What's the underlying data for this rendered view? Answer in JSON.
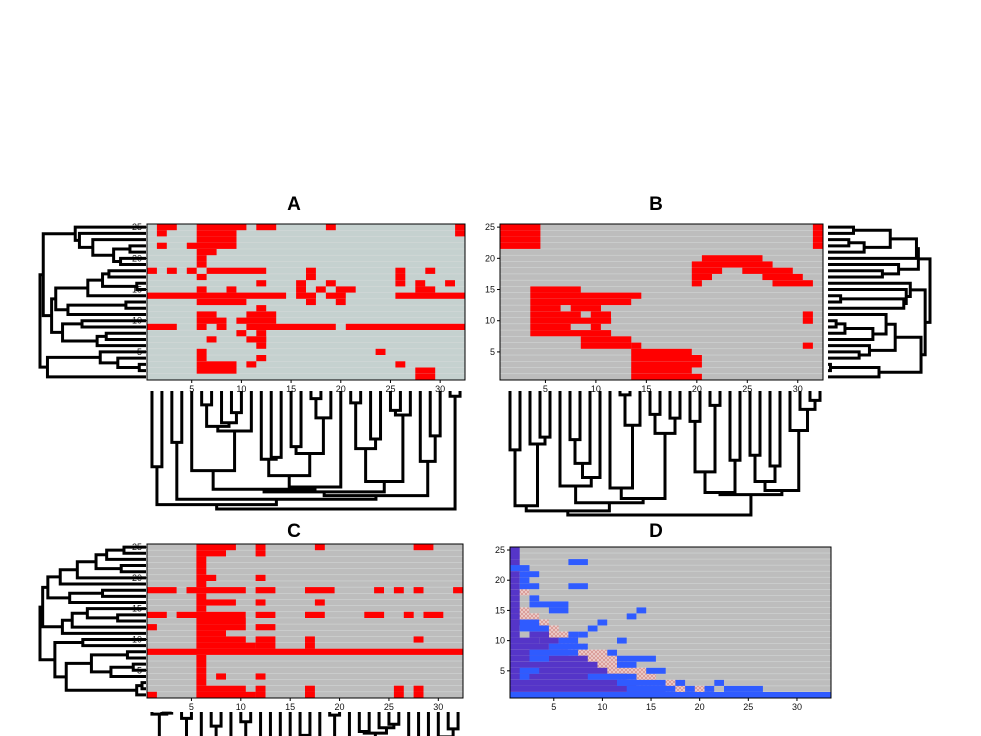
{
  "colors": {
    "background_A": "#c5d1cf",
    "background": "#bdbdbd",
    "cell_red": "#ff0000",
    "cell_blue": "#2f5bff",
    "cell_purple": "#5535c8",
    "cell_hatch": "#d89a96"
  },
  "chart_data": [
    {
      "id": "A",
      "title": "A",
      "type": "heatmap",
      "rows": 25,
      "cols": 32,
      "xticks": [
        5,
        10,
        15,
        20,
        25,
        30
      ],
      "yticks": [
        5,
        10,
        15,
        20,
        25
      ],
      "row_dendrogram": "left",
      "col_dendrogram": "bottom",
      "cells": [
        [
          25,
          2,
          3
        ],
        [
          25,
          6,
          10
        ],
        [
          25,
          12,
          13
        ],
        [
          25,
          19,
          19
        ],
        [
          25,
          32,
          32
        ],
        [
          24,
          2,
          2
        ],
        [
          24,
          6,
          9
        ],
        [
          24,
          32,
          32
        ],
        [
          23,
          6,
          9
        ],
        [
          22,
          2,
          2
        ],
        [
          22,
          5,
          9
        ],
        [
          21,
          6,
          7
        ],
        [
          20,
          6,
          6
        ],
        [
          19,
          6,
          6
        ],
        [
          18,
          1,
          1
        ],
        [
          18,
          3,
          3
        ],
        [
          18,
          5,
          5
        ],
        [
          18,
          7,
          12
        ],
        [
          18,
          17,
          17
        ],
        [
          18,
          26,
          26
        ],
        [
          18,
          29,
          29
        ],
        [
          17,
          6,
          6
        ],
        [
          17,
          17,
          17
        ],
        [
          17,
          26,
          26
        ],
        [
          16,
          12,
          12
        ],
        [
          16,
          16,
          16
        ],
        [
          16,
          19,
          19
        ],
        [
          16,
          26,
          26
        ],
        [
          16,
          28,
          28
        ],
        [
          16,
          31,
          31
        ],
        [
          15,
          6,
          6
        ],
        [
          15,
          9,
          9
        ],
        [
          15,
          16,
          16
        ],
        [
          15,
          18,
          18
        ],
        [
          15,
          20,
          21
        ],
        [
          15,
          28,
          29
        ],
        [
          14,
          1,
          14
        ],
        [
          14,
          16,
          17
        ],
        [
          14,
          19,
          20
        ],
        [
          14,
          26,
          32
        ],
        [
          13,
          6,
          10
        ],
        [
          13,
          17,
          17
        ],
        [
          13,
          20,
          20
        ],
        [
          12,
          12,
          12
        ],
        [
          11,
          6,
          7
        ],
        [
          11,
          11,
          13
        ],
        [
          10,
          6,
          8
        ],
        [
          10,
          10,
          13
        ],
        [
          9,
          1,
          3
        ],
        [
          9,
          6,
          6
        ],
        [
          9,
          8,
          8
        ],
        [
          9,
          11,
          19
        ],
        [
          9,
          21,
          32
        ],
        [
          8,
          10,
          10
        ],
        [
          8,
          12,
          12
        ],
        [
          7,
          7,
          7
        ],
        [
          7,
          11,
          12
        ],
        [
          6,
          12,
          12
        ],
        [
          5,
          6,
          6
        ],
        [
          5,
          24,
          24
        ],
        [
          4,
          6,
          6
        ],
        [
          4,
          12,
          12
        ],
        [
          3,
          6,
          9
        ],
        [
          3,
          11,
          11
        ],
        [
          3,
          26,
          26
        ],
        [
          2,
          6,
          9
        ],
        [
          2,
          28,
          29
        ],
        [
          1,
          28,
          29
        ]
      ]
    },
    {
      "id": "B",
      "title": "B",
      "type": "heatmap",
      "rows": 25,
      "cols": 32,
      "xticks": [
        5,
        10,
        15,
        20,
        25,
        30
      ],
      "yticks": [
        5,
        10,
        15,
        20,
        25
      ],
      "row_dendrogram": "right",
      "col_dendrogram": "bottom",
      "cells": [
        [
          25,
          1,
          4
        ],
        [
          25,
          32,
          32
        ],
        [
          24,
          1,
          4
        ],
        [
          24,
          32,
          32
        ],
        [
          23,
          1,
          4
        ],
        [
          23,
          32,
          32
        ],
        [
          22,
          1,
          4
        ],
        [
          22,
          32,
          32
        ],
        [
          20,
          21,
          26
        ],
        [
          19,
          20,
          27
        ],
        [
          18,
          20,
          22
        ],
        [
          18,
          25,
          29
        ],
        [
          17,
          20,
          21
        ],
        [
          17,
          27,
          30
        ],
        [
          16,
          20,
          20
        ],
        [
          16,
          28,
          31
        ],
        [
          15,
          4,
          8
        ],
        [
          14,
          4,
          14
        ],
        [
          13,
          4,
          13
        ],
        [
          12,
          4,
          6
        ],
        [
          12,
          8,
          10
        ],
        [
          11,
          4,
          8
        ],
        [
          11,
          10,
          11
        ],
        [
          11,
          31,
          31
        ],
        [
          10,
          4,
          11
        ],
        [
          10,
          31,
          31
        ],
        [
          9,
          4,
          7
        ],
        [
          9,
          10,
          10
        ],
        [
          8,
          4,
          11
        ],
        [
          7,
          9,
          13
        ],
        [
          6,
          9,
          13
        ],
        [
          6,
          31,
          31
        ],
        [
          5,
          14,
          19
        ],
        [
          6,
          14,
          14
        ],
        [
          4,
          14,
          20
        ],
        [
          3,
          14,
          20
        ],
        [
          2,
          14,
          19
        ],
        [
          1,
          14,
          20
        ]
      ]
    },
    {
      "id": "C",
      "title": "C",
      "type": "heatmap",
      "rows": 25,
      "cols": 32,
      "xticks": [
        5,
        10,
        15,
        20,
        25,
        30
      ],
      "yticks": [
        5,
        10,
        15,
        20,
        25
      ],
      "row_dendrogram": "left",
      "col_dendrogram": "bottom",
      "cells": [
        [
          25,
          6,
          9
        ],
        [
          25,
          12,
          12
        ],
        [
          25,
          18,
          18
        ],
        [
          25,
          28,
          29
        ],
        [
          24,
          6,
          8
        ],
        [
          24,
          12,
          12
        ],
        [
          23,
          6,
          6
        ],
        [
          22,
          6,
          6
        ],
        [
          21,
          6,
          6
        ],
        [
          20,
          6,
          7
        ],
        [
          20,
          12,
          12
        ],
        [
          19,
          6,
          6
        ],
        [
          18,
          1,
          3
        ],
        [
          18,
          5,
          10
        ],
        [
          18,
          12,
          13
        ],
        [
          18,
          17,
          19
        ],
        [
          18,
          24,
          24
        ],
        [
          18,
          26,
          26
        ],
        [
          18,
          28,
          28
        ],
        [
          18,
          32,
          32
        ],
        [
          17,
          6,
          6
        ],
        [
          16,
          6,
          9
        ],
        [
          16,
          12,
          12
        ],
        [
          16,
          18,
          18
        ],
        [
          15,
          6,
          6
        ],
        [
          14,
          1,
          2
        ],
        [
          14,
          4,
          10
        ],
        [
          14,
          12,
          13
        ],
        [
          14,
          17,
          18
        ],
        [
          14,
          23,
          24
        ],
        [
          14,
          27,
          27
        ],
        [
          14,
          29,
          30
        ],
        [
          13,
          6,
          10
        ],
        [
          12,
          1,
          1
        ],
        [
          12,
          6,
          10
        ],
        [
          12,
          12,
          13
        ],
        [
          11,
          6,
          8
        ],
        [
          10,
          6,
          10
        ],
        [
          10,
          12,
          13
        ],
        [
          10,
          17,
          17
        ],
        [
          10,
          28,
          28
        ],
        [
          9,
          6,
          11
        ],
        [
          9,
          12,
          13
        ],
        [
          9,
          17,
          17
        ],
        [
          8,
          1,
          32
        ],
        [
          7,
          6,
          6
        ],
        [
          6,
          6,
          6
        ],
        [
          5,
          6,
          6
        ],
        [
          4,
          6,
          6
        ],
        [
          4,
          12,
          12
        ],
        [
          3,
          6,
          6
        ],
        [
          4,
          8,
          8
        ],
        [
          2,
          6,
          10
        ],
        [
          2,
          12,
          12
        ],
        [
          2,
          17,
          17
        ],
        [
          2,
          26,
          26
        ],
        [
          2,
          28,
          28
        ],
        [
          1,
          1,
          1
        ],
        [
          1,
          6,
          11
        ],
        [
          1,
          12,
          12
        ],
        [
          1,
          17,
          17
        ],
        [
          1,
          26,
          26
        ],
        [
          1,
          28,
          28
        ]
      ]
    },
    {
      "id": "D",
      "title": "D",
      "type": "heatmap",
      "rows": 25,
      "cols": 33,
      "xticks": [
        5,
        10,
        15,
        20,
        25,
        30
      ],
      "yticks": [
        5,
        10,
        15,
        20,
        25
      ],
      "row_dendrogram": "none",
      "col_dendrogram": "none",
      "cells_blue": [
        [
          23,
          7,
          8
        ],
        [
          22,
          1,
          2
        ],
        [
          21,
          2,
          3
        ],
        [
          20,
          2,
          2
        ],
        [
          19,
          7,
          8
        ],
        [
          19,
          2,
          3
        ],
        [
          17,
          3,
          3
        ],
        [
          16,
          3,
          6
        ],
        [
          15,
          14,
          14
        ],
        [
          15,
          5,
          6
        ],
        [
          14,
          13,
          13
        ],
        [
          13,
          10,
          10
        ],
        [
          13,
          2,
          3
        ],
        [
          12,
          2,
          4
        ],
        [
          12,
          9,
          9
        ],
        [
          11,
          7,
          7
        ],
        [
          11,
          8,
          8
        ],
        [
          10,
          12,
          12
        ],
        [
          10,
          6,
          7
        ],
        [
          9,
          5,
          8
        ],
        [
          8,
          11,
          11
        ],
        [
          8,
          3,
          7
        ],
        [
          7,
          12,
          15
        ],
        [
          7,
          3,
          4
        ],
        [
          6,
          12,
          13
        ],
        [
          5,
          15,
          16
        ],
        [
          5,
          2,
          3
        ],
        [
          4,
          12,
          13
        ],
        [
          4,
          9,
          12
        ],
        [
          4,
          2,
          2
        ],
        [
          3,
          18,
          18
        ],
        [
          3,
          22,
          22
        ],
        [
          3,
          12,
          16
        ],
        [
          2,
          13,
          17
        ],
        [
          2,
          19,
          19
        ],
        [
          2,
          21,
          21
        ],
        [
          2,
          23,
          26
        ],
        [
          1,
          1,
          33
        ]
      ],
      "cells_purple": [
        [
          25,
          1,
          1
        ],
        [
          24,
          1,
          1
        ],
        [
          23,
          1,
          1
        ],
        [
          22,
          1,
          1
        ],
        [
          21,
          1,
          1
        ],
        [
          20,
          1,
          1
        ],
        [
          19,
          1,
          1
        ],
        [
          18,
          1,
          1
        ],
        [
          17,
          1,
          1
        ],
        [
          16,
          1,
          1
        ],
        [
          15,
          1,
          1
        ],
        [
          14,
          1,
          1
        ],
        [
          13,
          1,
          2
        ],
        [
          12,
          1,
          1
        ],
        [
          11,
          1,
          1
        ],
        [
          11,
          3,
          4
        ],
        [
          10,
          1,
          3
        ],
        [
          10,
          4,
          5
        ],
        [
          9,
          1,
          4
        ],
        [
          8,
          1,
          6
        ],
        [
          7,
          1,
          8
        ],
        [
          6,
          1,
          9
        ],
        [
          5,
          1,
          10
        ],
        [
          4,
          1,
          11
        ],
        [
          3,
          1,
          13
        ],
        [
          2,
          1,
          16
        ],
        [
          1,
          1,
          33
        ]
      ],
      "cells_hatch": [
        [
          21,
          1,
          2
        ],
        [
          18,
          1,
          2
        ],
        [
          15,
          1,
          2
        ],
        [
          14,
          1,
          3
        ],
        [
          13,
          2,
          4
        ],
        [
          12,
          3,
          5
        ],
        [
          11,
          5,
          6
        ],
        [
          10,
          6,
          7
        ],
        [
          9,
          6,
          8
        ],
        [
          8,
          7,
          10
        ],
        [
          7,
          9,
          11
        ],
        [
          6,
          10,
          12
        ],
        [
          5,
          11,
          14
        ],
        [
          4,
          12,
          15
        ],
        [
          3,
          14,
          18
        ],
        [
          2,
          17,
          21
        ]
      ]
    }
  ]
}
